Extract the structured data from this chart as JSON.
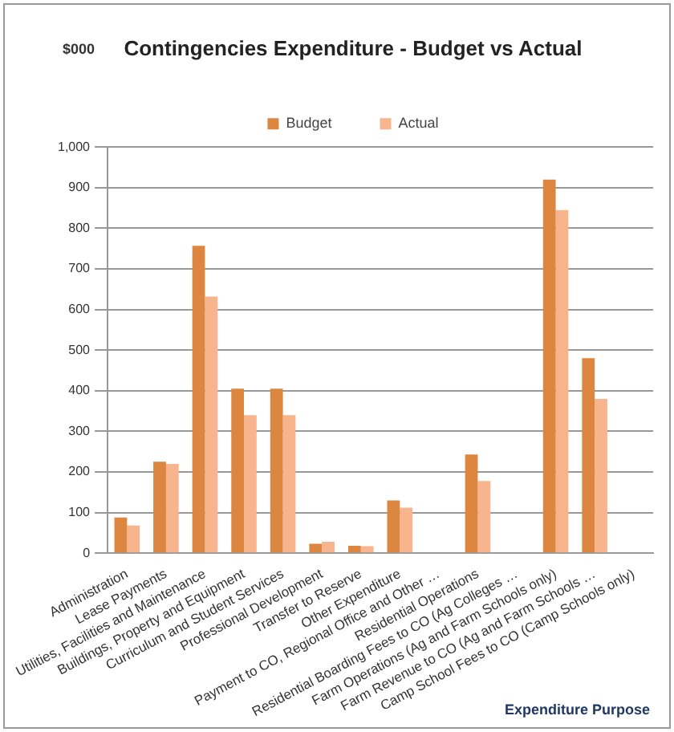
{
  "chart_data": {
    "type": "bar",
    "title": "Contingencies Expenditure - Budget vs Actual",
    "annotations": [
      "$000"
    ],
    "xlabel": "Expenditure Purpose",
    "categories": [
      "Administration",
      "Lease Payments",
      "Utilities, Facilities and Maintenance",
      "Buildings, Property and Equipment",
      "Curriculum and Student Services",
      "Professional Development",
      "Transfer to Reserve",
      "Other Expenditure",
      "Payment to CO, Regional Office and Other …",
      "Residential Operations",
      "Residential Boarding Fees to CO (Ag Colleges …",
      "Farm Operations (Ag and Farm Schools only)",
      "Farm Revenue to CO (Ag and Farm Schools …",
      "Camp School Fees to CO (Camp Schools only)"
    ],
    "series": [
      {
        "name": "Budget",
        "color": "#dd8640",
        "values": [
          88,
          225,
          757,
          405,
          405,
          23,
          18,
          130,
          0,
          243,
          0,
          920,
          480,
          0
        ]
      },
      {
        "name": "Actual",
        "color": "#f8b48c",
        "values": [
          68,
          220,
          632,
          340,
          340,
          28,
          17,
          112,
          0,
          178,
          0,
          845,
          380,
          0
        ]
      }
    ],
    "ylim": [
      0,
      1000
    ],
    "yticks": [
      0,
      100,
      200,
      300,
      400,
      500,
      600,
      700,
      800,
      900,
      {
        "value": 1000,
        "label": "1,000"
      }
    ],
    "grid": "y",
    "legend": "top"
  }
}
